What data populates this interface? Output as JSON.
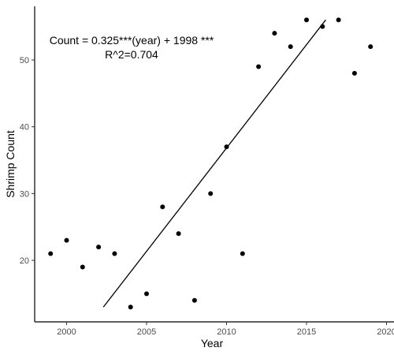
{
  "chart_data": {
    "type": "scatter",
    "title": "",
    "xlabel": "Year",
    "ylabel": "Shrimp Count",
    "xlim": [
      1998,
      2020
    ],
    "ylim": [
      11,
      58
    ],
    "x_ticks": [
      2000,
      2005,
      2010,
      2015,
      2020
    ],
    "y_ticks": [
      20,
      30,
      40,
      50
    ],
    "grid": false,
    "series": [
      {
        "x": [
          1999,
          2000,
          2001,
          2002,
          2003,
          2004,
          2005,
          2006,
          2007,
          2008,
          2009,
          2010,
          2011,
          2012,
          2013,
          2014,
          2015,
          2016,
          2017,
          2018,
          2019
        ],
        "y": [
          21,
          23,
          19,
          22,
          21,
          13,
          15,
          28,
          24,
          14,
          30,
          37,
          21,
          49,
          54,
          52,
          56,
          55,
          56,
          48,
          52
        ]
      }
    ],
    "fit_line": {
      "x": [
        2002.3,
        2016.2
      ],
      "y": [
        13,
        56
      ]
    },
    "annotation": {
      "line1": "Count = 0.325***(year) + 1998 ***",
      "line2": "R^2=0.704"
    }
  }
}
